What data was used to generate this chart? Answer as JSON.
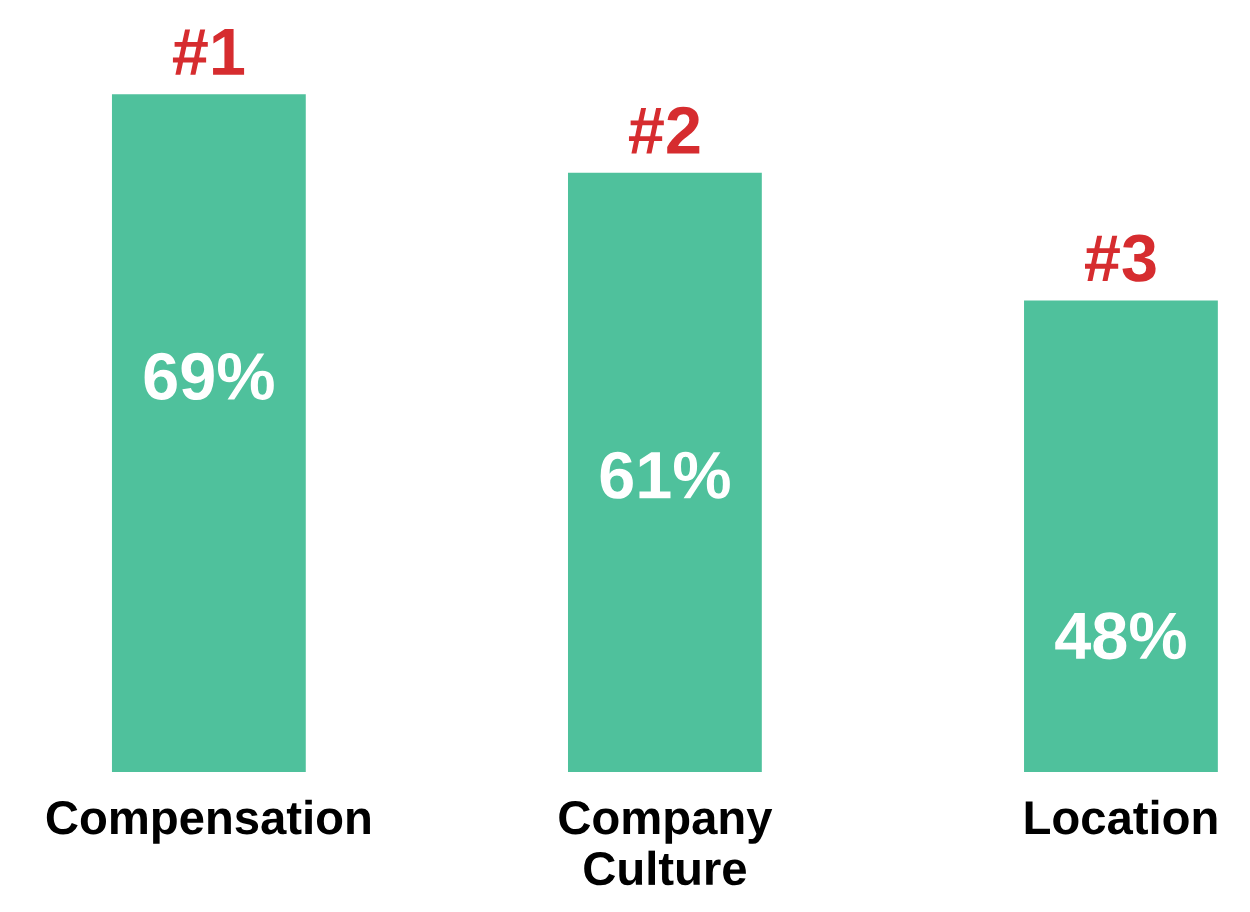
{
  "chart_data": {
    "type": "bar",
    "categories": [
      "Compensation",
      "Company\nCulture",
      "Location"
    ],
    "values": [
      69,
      61,
      48
    ],
    "value_labels": [
      "69%",
      "61%",
      "48%"
    ],
    "color": "#4fc19c",
    "tick_labels": "x",
    "grid": false,
    "legend": false,
    "annotations": [
      {
        "text": "#1",
        "x": "Compensation",
        "y": 69
      },
      {
        "text": "#2",
        "x": "Company\nCulture",
        "y": 61
      },
      {
        "text": "#3",
        "x": "Location",
        "y": 48
      }
    ]
  }
}
